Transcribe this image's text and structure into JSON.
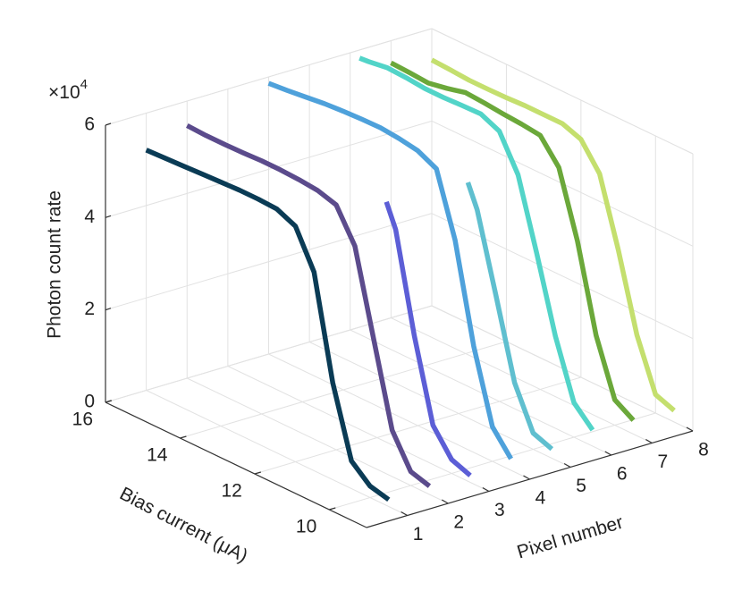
{
  "chart_data": {
    "type": "line3d",
    "xlabel": "Pixel number",
    "ylabel": "Bias current (μA)",
    "zlabel": "Photon count rate",
    "z_multiplier": {
      "base": "×10",
      "power": "4"
    },
    "xlim": [
      0,
      8
    ],
    "xticks": [
      1,
      2,
      3,
      4,
      5,
      6,
      7,
      8
    ],
    "ylim": [
      9,
      16
    ],
    "yticks": [
      10,
      12,
      14,
      16
    ],
    "zlim": [
      0,
      6
    ],
    "zticks": [
      0,
      2,
      4,
      6
    ],
    "grid": true,
    "series": [
      {
        "pixel": 1,
        "color": "#0a3b55",
        "bias": [
          16,
          15.5,
          15,
          14.5,
          14,
          13.5,
          13,
          12.5,
          12,
          11.5,
          11,
          10.5,
          10,
          9.5
        ],
        "values": [
          5.2,
          5.22,
          5.24,
          5.26,
          5.28,
          5.3,
          5.3,
          5.28,
          5.1,
          4.3,
          2.1,
          0.6,
          0.25,
          0.15
        ]
      },
      {
        "pixel": 2,
        "color": "#5b4b8c",
        "bias": [
          16,
          15.5,
          15,
          14.5,
          14,
          13.5,
          13,
          12.5,
          12,
          11.5,
          11,
          10.5,
          10,
          9.5
        ],
        "values": [
          5.47,
          5.45,
          5.45,
          5.46,
          5.48,
          5.48,
          5.46,
          5.42,
          5.3,
          4.6,
          2.8,
          1.0,
          0.3,
          0.18
        ]
      },
      {
        "pixel": 3,
        "color": "#5c5ed6",
        "bias": [
          11.75,
          11.5,
          11,
          10.5,
          10,
          9.5
        ],
        "values": [
          5.2,
          4.7,
          2.6,
          0.85,
          0.3,
          0.15
        ]
      },
      {
        "pixel": 4,
        "color": "#4ea1db",
        "bias": [
          16,
          15.5,
          15,
          14.5,
          14,
          13.5,
          13,
          12.5,
          12,
          11.5,
          11,
          10.5,
          10,
          9.5
        ],
        "values": [
          5.86,
          5.9,
          5.95,
          6.0,
          6.03,
          6.05,
          6.06,
          6.02,
          5.95,
          5.75,
          4.4,
          2.3,
          0.75,
          0.25
        ]
      },
      {
        "pixel": 5,
        "color": "#5fbfcf",
        "bias": [
          11.75,
          11.5,
          11,
          10.5,
          10,
          9.5
        ],
        "values": [
          5.1,
          4.6,
          2.95,
          1.25,
          0.35,
          0.2
        ]
      },
      {
        "pixel": 6,
        "color": "#52d4c8",
        "bias": [
          15.75,
          15.5,
          15,
          14.5,
          14,
          13.5,
          13,
          12.5,
          12,
          11.5,
          11,
          10.5,
          10,
          9.5
        ],
        "values": [
          5.98,
          6.0,
          6.06,
          6.04,
          6.0,
          6.0,
          6.02,
          6.03,
          5.85,
          5.1,
          3.6,
          2.0,
          0.75,
          0.35
        ]
      },
      {
        "pixel": 7,
        "color": "#6ba83a",
        "bias": [
          16,
          15.5,
          15,
          14.5,
          14,
          13.5,
          13,
          12.5,
          12,
          11.5,
          11,
          10.5,
          10,
          9.5
        ],
        "values": [
          5.52,
          5.5,
          5.47,
          5.55,
          5.65,
          5.62,
          5.58,
          5.55,
          5.5,
          5.0,
          3.6,
          1.75,
          0.55,
          0.3
        ]
      },
      {
        "pixel": 8,
        "color": "#c4df6e",
        "bias": [
          16,
          15.5,
          15,
          14.5,
          14,
          13.5,
          13,
          12.5,
          12,
          11.5,
          11,
          10.5,
          10,
          9.5
        ],
        "values": [
          5.32,
          5.3,
          5.27,
          5.27,
          5.28,
          5.3,
          5.3,
          5.3,
          5.15,
          4.6,
          3.15,
          1.5,
          0.4,
          0.25
        ]
      }
    ]
  }
}
